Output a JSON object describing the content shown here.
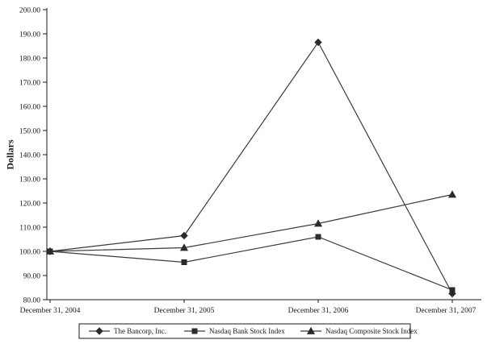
{
  "chart_data": {
    "type": "line",
    "title": "",
    "xlabel": "",
    "ylabel": "Dollars",
    "ylim": [
      80,
      200
    ],
    "ytick_step": 10,
    "grid": false,
    "legend_position": "bottom",
    "line_color": "#3a3a3a",
    "marker_color": "#2b2b2b",
    "text_color": "#1a1a1a",
    "categories": [
      "December 31, 2004",
      "December 31, 2005",
      "December 31, 2006",
      "December 31, 2007"
    ],
    "series": [
      {
        "name": "The Bancorp, Inc.",
        "marker": "diamond",
        "values": [
          100.0,
          106.5,
          186.5,
          82.5
        ]
      },
      {
        "name": "Nasdaq Bank Stock Index",
        "marker": "square",
        "values": [
          100.0,
          95.5,
          106.0,
          84.0
        ]
      },
      {
        "name": "Nasdaq Composite Stock Index",
        "marker": "triangle",
        "values": [
          100.0,
          101.5,
          111.5,
          123.5
        ]
      }
    ]
  }
}
